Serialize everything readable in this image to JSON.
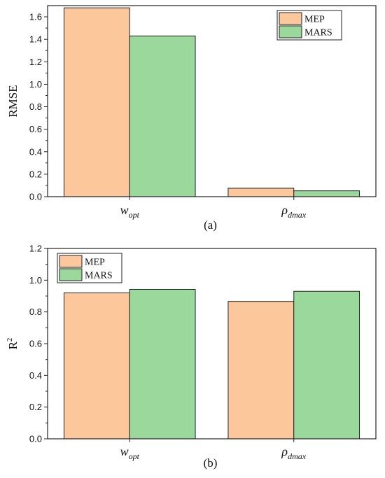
{
  "colors": {
    "MEP": "#fcc89b",
    "MARS": "#9bd89b"
  },
  "chart_data": [
    {
      "type": "bar",
      "panel": "(a)",
      "ylabel": "RMSE",
      "categories": [
        {
          "base": "w",
          "sub": "opt"
        },
        {
          "base": "ρ",
          "sub": "dmax"
        }
      ],
      "series": [
        {
          "name": "MEP",
          "values": [
            1.68,
            0.075
          ]
        },
        {
          "name": "MARS",
          "values": [
            1.43,
            0.052
          ]
        }
      ],
      "ylim": [
        0,
        1.7
      ],
      "yticks": [
        "0.0",
        "0.2",
        "0.4",
        "0.6",
        "0.8",
        "1.0",
        "1.2",
        "1.4",
        "1.6"
      ],
      "legend": "top-right"
    },
    {
      "type": "bar",
      "panel": "(b)",
      "ylabel": "R",
      "ylabel_sup": "2",
      "categories": [
        {
          "base": "w",
          "sub": "opt"
        },
        {
          "base": "ρ",
          "sub": "dmax"
        }
      ],
      "series": [
        {
          "name": "MEP",
          "values": [
            0.92,
            0.866
          ]
        },
        {
          "name": "MARS",
          "values": [
            0.942,
            0.93
          ]
        }
      ],
      "ylim": [
        0,
        1.2
      ],
      "yticks": [
        "0.0",
        "0.2",
        "0.4",
        "0.6",
        "0.8",
        "1.0",
        "1.2"
      ],
      "legend": "top-left"
    }
  ]
}
